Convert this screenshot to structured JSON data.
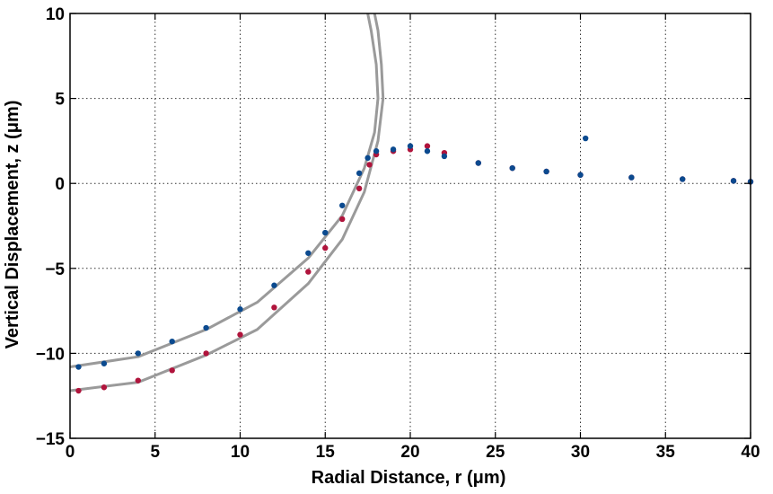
{
  "chart_data": {
    "type": "scatter",
    "title": "",
    "xlabel": "Radial Distance, r (μm)",
    "ylabel": "Vertical Displacement, z (μm)",
    "xlim": [
      0,
      40
    ],
    "ylim": [
      -15,
      10
    ],
    "xticks": [
      0,
      5,
      10,
      15,
      20,
      25,
      30,
      35,
      40
    ],
    "yticks": [
      -15,
      -10,
      -5,
      0,
      5,
      10
    ],
    "xtick_labels": [
      "0",
      "5",
      "10",
      "15",
      "20",
      "25",
      "30",
      "35",
      "40"
    ],
    "ytick_labels": [
      "−15",
      "−10",
      "−5",
      "0",
      "5",
      "10"
    ],
    "grid": true,
    "legend": "none",
    "series": [
      {
        "kind": "scatter",
        "color": "#b0143c",
        "x": [
          0.5,
          2,
          4,
          6,
          8,
          10,
          12,
          14,
          15,
          16,
          17,
          17.6,
          18,
          19,
          20,
          21,
          22,
          24,
          26,
          28,
          30,
          33,
          36,
          39,
          40
        ],
        "y": [
          -12.2,
          -12.0,
          -11.6,
          -11.0,
          -10.0,
          -8.9,
          -7.3,
          -5.2,
          -3.8,
          -2.1,
          -0.3,
          1.1,
          1.7,
          1.9,
          2.0,
          2.2,
          1.8,
          1.2,
          0.9,
          0.7,
          0.5,
          0.35,
          0.25,
          0.15,
          0.1
        ]
      },
      {
        "kind": "scatter",
        "color": "#0b4a8f",
        "x": [
          0.5,
          2,
          4,
          6,
          8,
          10,
          12,
          14,
          15,
          16,
          17,
          17.5,
          18,
          19,
          20,
          21,
          22,
          24,
          26,
          28,
          30,
          33,
          36,
          39,
          40
        ],
        "y": [
          -10.8,
          -10.6,
          -10.0,
          -9.3,
          -8.5,
          -7.4,
          -6.0,
          -4.1,
          -2.9,
          -1.3,
          0.6,
          1.5,
          1.9,
          2.0,
          2.2,
          1.9,
          1.6,
          1.2,
          0.9,
          0.7,
          0.5,
          0.35,
          0.25,
          0.15,
          0.1
        ]
      },
      {
        "kind": "scatter",
        "color": "#0b4a8f",
        "x": [
          30.3
        ],
        "y": [
          2.65
        ]
      },
      {
        "kind": "line",
        "color": "#9a9a9a",
        "x": [
          0,
          4,
          8,
          11,
          14,
          16,
          17.3,
          17.9,
          18.1,
          18.0,
          17.7,
          17.5
        ],
        "y": [
          -10.8,
          -10.2,
          -8.6,
          -7.0,
          -4.4,
          -1.9,
          0.9,
          3.0,
          5.0,
          7.0,
          9.0,
          10.0
        ]
      },
      {
        "kind": "line",
        "color": "#9a9a9a",
        "x": [
          0,
          4,
          8,
          11,
          14,
          16,
          17.3,
          18.1,
          18.4,
          18.3,
          18.1,
          17.9
        ],
        "y": [
          -12.2,
          -11.7,
          -10.1,
          -8.6,
          -5.9,
          -3.3,
          -0.5,
          2.5,
          5.0,
          7.0,
          9.0,
          10.0
        ]
      }
    ]
  }
}
